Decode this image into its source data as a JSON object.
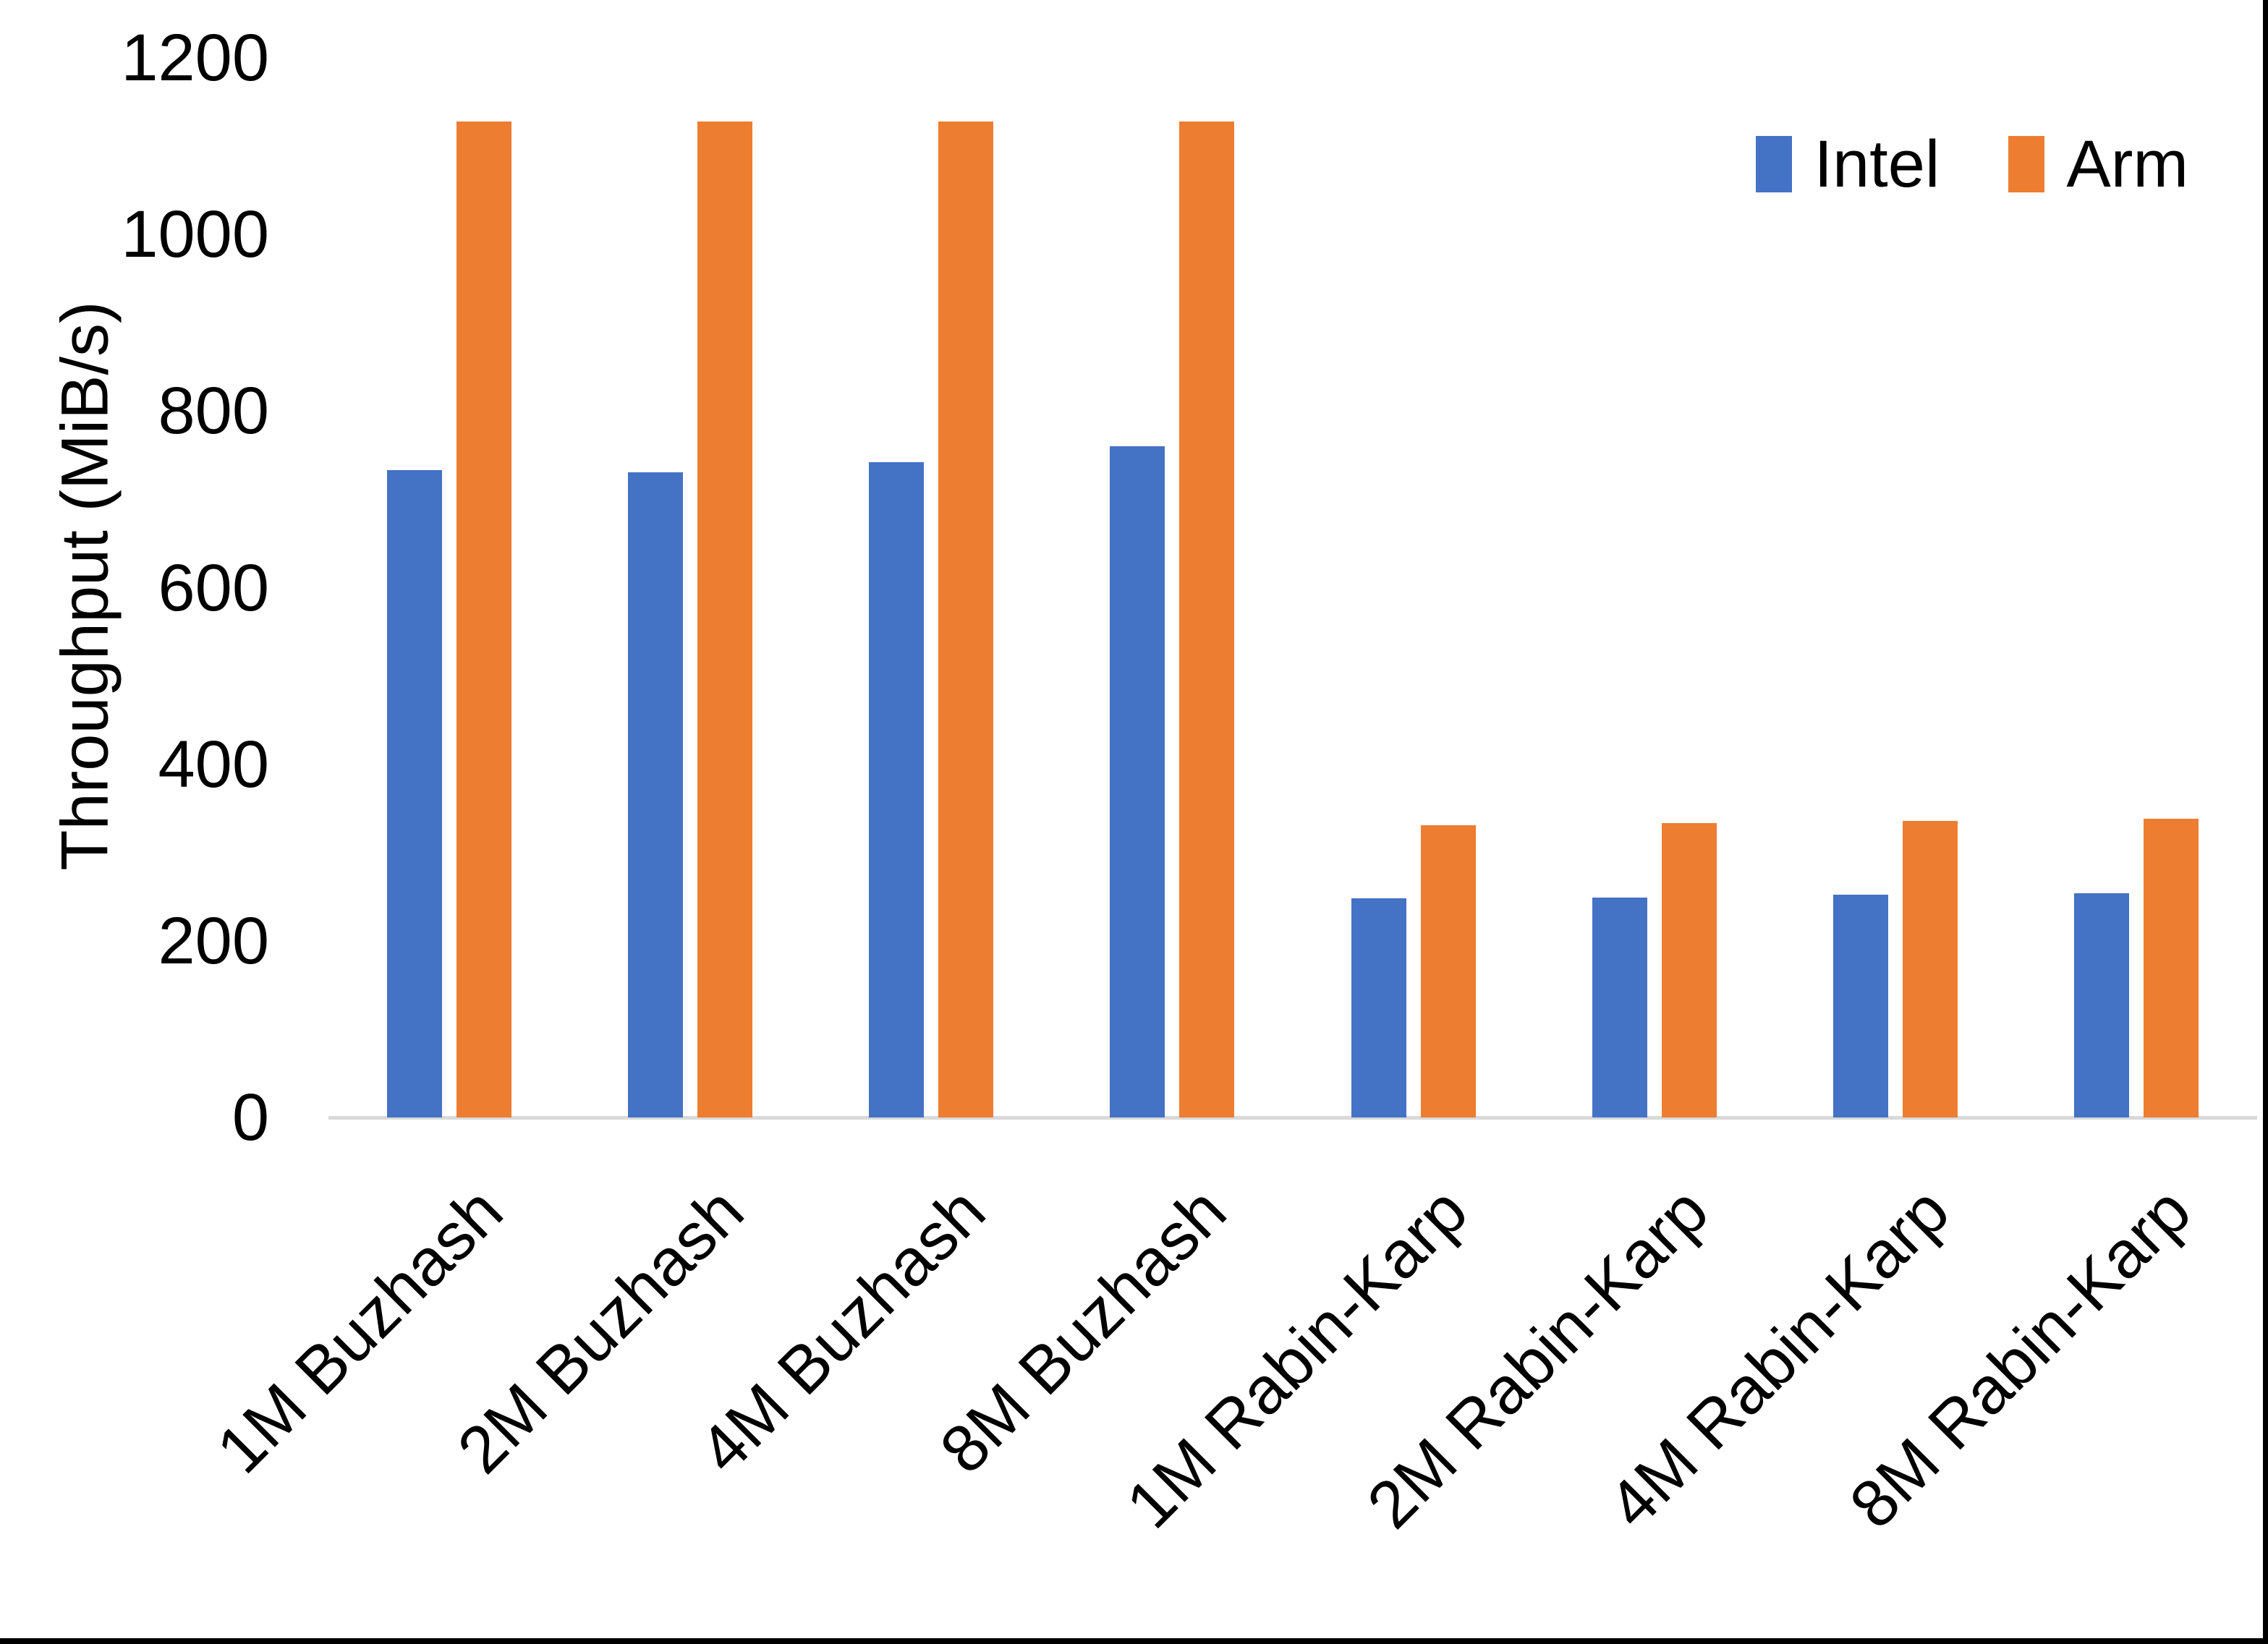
{
  "chart_data": {
    "type": "bar",
    "title": "",
    "xlabel": "",
    "ylabel": "Throughput (MiB/s)",
    "categories": [
      "1M Buzhash",
      "2M Buzhash",
      "4M Buzhash",
      "8M Buzhash",
      "1M Rabin-Karp",
      "2M Rabin-Karp",
      "4M Rabin-Karp",
      "8M Rabin-Karp"
    ],
    "series": [
      {
        "name": "Intel",
        "color": "#4472C4",
        "values": [
          733,
          731,
          742,
          760,
          248,
          249,
          252,
          254
        ]
      },
      {
        "name": "Arm",
        "color": "#ED7D31",
        "values": [
          1128,
          1128,
          1128,
          1128,
          331,
          333,
          336,
          338
        ]
      }
    ],
    "ylim": [
      0,
      1200
    ],
    "yticks": [
      0,
      200,
      400,
      600,
      800,
      1000,
      1200
    ],
    "grid": false,
    "legend_position": "top-right",
    "axis_line_color": "#D9D9D9",
    "text_color": "#000000",
    "background_color": "#FFFFFF"
  },
  "frame": {
    "border_color": "#000000"
  }
}
